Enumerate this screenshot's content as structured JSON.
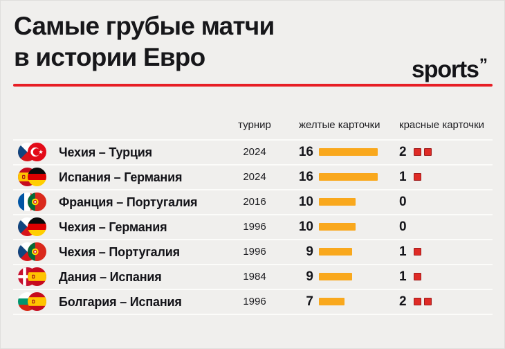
{
  "page": {
    "background": "#F0EFED",
    "accent_red": "#E71E25",
    "bar_yellow": "#F9A81D",
    "card_red_fill": "#DF2B26",
    "card_red_border": "#9E1B1B",
    "text_color": "#17171A"
  },
  "header": {
    "title_line1": "Самые грубые матчи",
    "title_line2": "в истории Евро",
    "logo_text": "sports",
    "logo_mark": "”"
  },
  "table": {
    "headers": {
      "tournament": "турнир",
      "yellow_cards": "желтые карточки",
      "red_cards": "красные карточки"
    },
    "rows": [
      {
        "match": "Чехия – Турция",
        "home_flag": "czech-flag-icon",
        "away_flag": "turkey-flag-icon",
        "tournament": "2024",
        "yellow_cards": 16,
        "red_cards": 2
      },
      {
        "match": "Испания – Германия",
        "home_flag": "spain-flag-icon",
        "away_flag": "germany-flag-icon",
        "tournament": "2024",
        "yellow_cards": 16,
        "red_cards": 1
      },
      {
        "match": "Франция – Португалия",
        "home_flag": "france-flag-icon",
        "away_flag": "portugal-flag-icon",
        "tournament": "2016",
        "yellow_cards": 10,
        "red_cards": 0
      },
      {
        "match": "Чехия – Германия",
        "home_flag": "czech-flag-icon",
        "away_flag": "germany-flag-icon",
        "tournament": "1996",
        "yellow_cards": 10,
        "red_cards": 0
      },
      {
        "match": "Чехия – Португалия",
        "home_flag": "czech-flag-icon",
        "away_flag": "portugal-flag-icon",
        "tournament": "1996",
        "yellow_cards": 9,
        "red_cards": 1
      },
      {
        "match": "Дания – Испания",
        "home_flag": "denmark-flag-icon",
        "away_flag": "spain-flag-icon",
        "tournament": "1984",
        "yellow_cards": 9,
        "red_cards": 1
      },
      {
        "match": "Болгария – Испания",
        "home_flag": "bulgaria-flag-icon",
        "away_flag": "spain-flag-icon",
        "tournament": "1996",
        "yellow_cards": 7,
        "red_cards": 2
      }
    ]
  },
  "chart_data": {
    "type": "bar",
    "orientation": "horizontal",
    "title": "Самые грубые матчи в истории Евро",
    "categories": [
      "Чехия – Турция",
      "Испания – Германия",
      "Франция – Португалия",
      "Чехия – Германия",
      "Чехия – Португалия",
      "Дания – Испания",
      "Болгария – Испания"
    ],
    "tournament_years": [
      "2024",
      "2024",
      "2016",
      "1996",
      "1996",
      "1984",
      "1996"
    ],
    "series": [
      {
        "name": "желтые карточки",
        "values": [
          16,
          16,
          10,
          10,
          9,
          9,
          7
        ],
        "color": "#F9A81D"
      },
      {
        "name": "красные карточки",
        "values": [
          2,
          1,
          0,
          0,
          1,
          1,
          2
        ],
        "color": "#DF2B26"
      }
    ],
    "xlabel": "",
    "ylabel": "",
    "grid": false,
    "legend_position": "top",
    "value_labels": true
  }
}
